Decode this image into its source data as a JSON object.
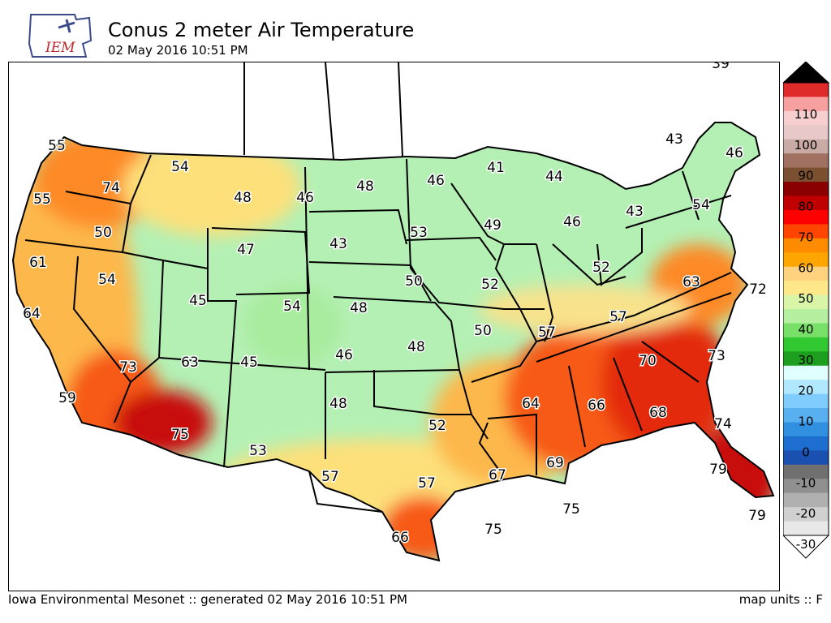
{
  "header": {
    "title": "Conus 2 meter Air Temperature",
    "timestamp": "02 May 2016 10:51 PM",
    "logo_text": "IEM"
  },
  "footer": {
    "source": "Iowa Environmental Mesonet :: generated 02 May 2016 10:51 PM",
    "units": "map units :: F"
  },
  "colors": {
    "c35": "#b4f0b4",
    "c45": "#a8ec9e",
    "c50": "#f8e28c",
    "c55": "#fde07a",
    "c60": "#fdb84c",
    "c65": "#fd8a25",
    "c70": "#f75a14",
    "c75": "#e32a10",
    "c80": "#c80a0a"
  },
  "legend": {
    "ticks": [
      "110",
      "100",
      "90",
      "80",
      "70",
      "60",
      "50",
      "40",
      "30",
      "20",
      "10",
      "0",
      "-10",
      "-20",
      "-30"
    ],
    "bands": [
      "#e02b2b",
      "#f6a0a0",
      "#f8cfcf",
      "#e8c8c8",
      "#c9aaa4",
      "#a07060",
      "#7a5030",
      "#8a0000",
      "#c00000",
      "#ff0000",
      "#ff4500",
      "#ff8c00",
      "#ffa500",
      "#ffd280",
      "#ffe88a",
      "#d8f5a8",
      "#b4f0a0",
      "#78e068",
      "#32c832",
      "#1e9e1e",
      "#e0ffff",
      "#b0e8ff",
      "#80ccff",
      "#58b0f0",
      "#3290e0",
      "#1e6ed0",
      "#1a50b0",
      "#707070",
      "#909090",
      "#b0b0b0",
      "#d0d0d0",
      "#e8e8e8"
    ],
    "top_color": "#000000",
    "bottom_color": "#ffffff"
  },
  "map_values": [
    "55",
    "74",
    "54",
    "55",
    "50",
    "48",
    "46",
    "48",
    "46",
    "41",
    "44",
    "43",
    "46",
    "61",
    "54",
    "47",
    "43",
    "53",
    "49",
    "46",
    "43",
    "54",
    "64",
    "45",
    "54",
    "48",
    "50",
    "52",
    "52",
    "63",
    "72",
    "73",
    "63",
    "45",
    "46",
    "48",
    "50",
    "57",
    "57",
    "70",
    "73",
    "59",
    "75",
    "53",
    "48",
    "52",
    "64",
    "66",
    "68",
    "74",
    "57",
    "57",
    "67",
    "69",
    "79",
    "75",
    "75",
    "79",
    "66",
    "39"
  ]
}
